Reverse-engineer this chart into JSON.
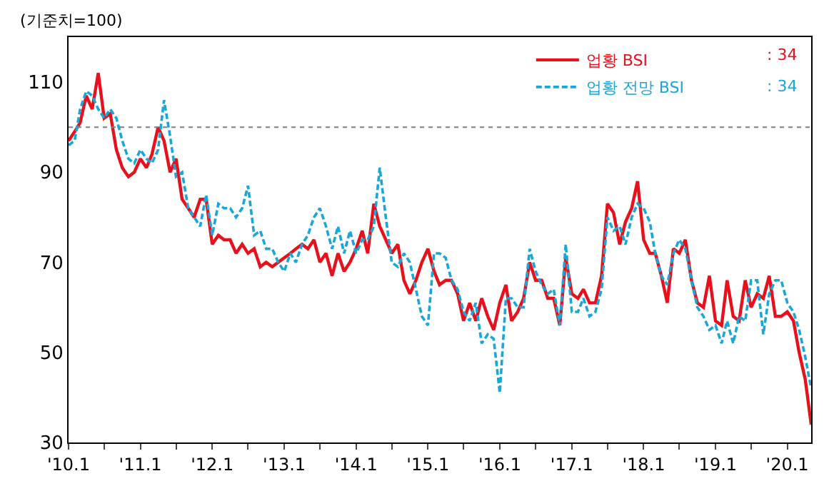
{
  "chart_data": {
    "type": "line",
    "ylabel": "(기준치=100)",
    "x": [
      "2010-01",
      "2010-02",
      "2010-03",
      "2010-04",
      "2010-05",
      "2010-06",
      "2010-07",
      "2010-08",
      "2010-09",
      "2010-10",
      "2010-11",
      "2010-12",
      "2011-01",
      "2011-02",
      "2011-03",
      "2011-04",
      "2011-05",
      "2011-06",
      "2011-07",
      "2011-08",
      "2011-09",
      "2011-10",
      "2011-11",
      "2011-12",
      "2012-01",
      "2012-02",
      "2012-03",
      "2012-04",
      "2012-05",
      "2012-06",
      "2012-07",
      "2012-08",
      "2012-09",
      "2012-10",
      "2012-11",
      "2012-12",
      "2013-01",
      "2013-02",
      "2013-03",
      "2013-04",
      "2013-05",
      "2013-06",
      "2013-07",
      "2013-08",
      "2013-09",
      "2013-10",
      "2013-11",
      "2013-12",
      "2014-01",
      "2014-02",
      "2014-03",
      "2014-04",
      "2014-05",
      "2014-06",
      "2014-07",
      "2014-08",
      "2014-09",
      "2014-10",
      "2014-11",
      "2014-12",
      "2015-01",
      "2015-02",
      "2015-03",
      "2015-04",
      "2015-05",
      "2015-06",
      "2015-07",
      "2015-08",
      "2015-09",
      "2015-10",
      "2015-11",
      "2015-12",
      "2016-01",
      "2016-02",
      "2016-03",
      "2016-04",
      "2016-05",
      "2016-06",
      "2016-07",
      "2016-08",
      "2016-09",
      "2016-10",
      "2016-11",
      "2016-12",
      "2017-01",
      "2017-02",
      "2017-03",
      "2017-04",
      "2017-05",
      "2017-06",
      "2017-07",
      "2017-08",
      "2017-09",
      "2017-10",
      "2017-11",
      "2017-12",
      "2018-01",
      "2018-02",
      "2018-03",
      "2018-04",
      "2018-05",
      "2018-06",
      "2018-07",
      "2018-08",
      "2018-09",
      "2018-10",
      "2018-11",
      "2018-12",
      "2019-01",
      "2019-02",
      "2019-03",
      "2019-04",
      "2019-05",
      "2019-06",
      "2019-07",
      "2019-08",
      "2019-09",
      "2019-10",
      "2019-11",
      "2019-12",
      "2020-01",
      "2020-02",
      "2020-03",
      "2020-04",
      "2020-05"
    ],
    "series": [
      {
        "name": "업황 BSI",
        "color": "#e8101a",
        "line_style": "solid",
        "values": [
          97,
          99,
          101,
          107,
          104,
          112,
          102,
          103,
          95,
          91,
          89,
          90,
          93,
          91,
          94,
          100,
          97,
          90,
          93,
          84,
          82,
          80,
          84,
          84,
          74,
          76,
          75,
          75,
          72,
          74,
          72,
          73,
          69,
          70,
          69,
          70,
          71,
          72,
          73,
          74,
          73,
          75,
          70,
          72,
          67,
          72,
          68,
          70,
          73,
          77,
          72,
          83,
          78,
          75,
          72,
          74,
          66,
          63,
          66,
          70,
          73,
          68,
          65,
          66,
          66,
          63,
          57,
          61,
          57,
          62,
          58,
          55,
          61,
          65,
          57,
          59,
          62,
          70,
          66,
          66,
          62,
          62,
          56,
          71,
          63,
          62,
          64,
          61,
          61,
          67,
          83,
          81,
          74,
          79,
          82,
          88,
          75,
          72,
          72,
          67,
          61,
          73,
          72,
          75,
          66,
          61,
          60,
          67,
          57,
          56,
          66,
          58,
          57,
          66,
          60,
          63,
          62,
          67,
          58,
          58,
          59,
          57,
          50,
          44,
          34
        ]
      },
      {
        "name": "업황 전망 BSI",
        "color": "#1aa6d8",
        "line_style": "dashed",
        "values": [
          96,
          97,
          104,
          108,
          107,
          104,
          102,
          104,
          102,
          97,
          93,
          92,
          95,
          93,
          92,
          95,
          106,
          98,
          89,
          90,
          82,
          80,
          78,
          85,
          76,
          83,
          82,
          82,
          80,
          82,
          87,
          76,
          77,
          73,
          73,
          70,
          68,
          72,
          70,
          74,
          76,
          80,
          82,
          78,
          73,
          78,
          72,
          77,
          72,
          75,
          75,
          78,
          91,
          80,
          70,
          69,
          72,
          70,
          64,
          58,
          56,
          72,
          72,
          71,
          66,
          64,
          59,
          57,
          61,
          52,
          54,
          53,
          41,
          62,
          62,
          60,
          60,
          73,
          68,
          65,
          63,
          64,
          56,
          74,
          59,
          59,
          62,
          58,
          59,
          64,
          80,
          77,
          78,
          74,
          80,
          83,
          82,
          79,
          72,
          67,
          65,
          72,
          75,
          73,
          66,
          60,
          58,
          55,
          56,
          52,
          57,
          52,
          58,
          57,
          66,
          66,
          54,
          63,
          66,
          66,
          61,
          59,
          55,
          49,
          42
        ]
      }
    ],
    "xlim": [
      "2010-01",
      "2020-05"
    ],
    "xticks": [
      {
        "value": "2010-01",
        "label": "'10.1"
      },
      {
        "value": "2010-07",
        "label": null
      },
      {
        "value": "2011-01",
        "label": "'11.1"
      },
      {
        "value": "2011-07",
        "label": null
      },
      {
        "value": "2012-01",
        "label": "'12.1"
      },
      {
        "value": "2012-07",
        "label": null
      },
      {
        "value": "2013-01",
        "label": "'13.1"
      },
      {
        "value": "2013-07",
        "label": null
      },
      {
        "value": "2014-01",
        "label": "'14.1"
      },
      {
        "value": "2014-07",
        "label": null
      },
      {
        "value": "2015-01",
        "label": "'15.1"
      },
      {
        "value": "2015-07",
        "label": null
      },
      {
        "value": "2016-01",
        "label": "'16.1"
      },
      {
        "value": "2016-07",
        "label": null
      },
      {
        "value": "2017-01",
        "label": "'17.1"
      },
      {
        "value": "2017-07",
        "label": null
      },
      {
        "value": "2018-01",
        "label": "'18.1"
      },
      {
        "value": "2018-07",
        "label": null
      },
      {
        "value": "2019-01",
        "label": "'19.1"
      },
      {
        "value": "2019-07",
        "label": null
      },
      {
        "value": "2020-01",
        "label": "'20.1"
      }
    ],
    "ylim": [
      30,
      120
    ],
    "yticks": [
      30,
      50,
      70,
      90,
      110
    ],
    "ref_lines": [
      {
        "axis": "y",
        "value": 100,
        "color": "#808080",
        "line_style": "dotted"
      }
    ],
    "annotations": [
      ": 34",
      ": 34"
    ],
    "legend": "top right",
    "marker": "none"
  }
}
